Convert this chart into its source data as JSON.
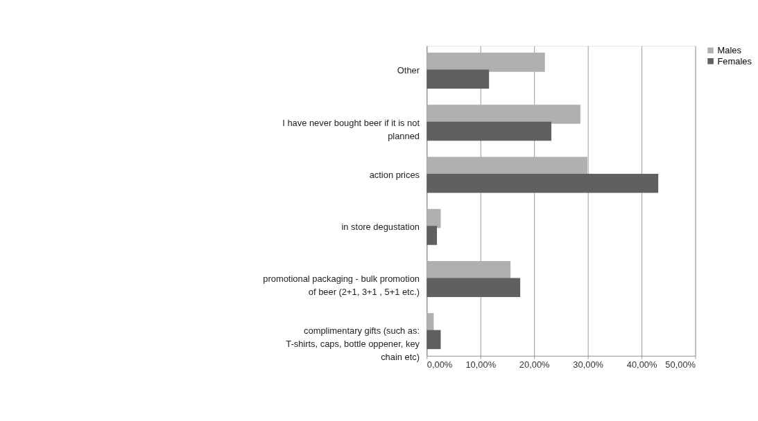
{
  "chart_data": {
    "type": "bar",
    "orientation": "horizontal",
    "categories": [
      "Other",
      "I have never bought beer if it is not planned",
      "action prices",
      "in store degustation",
      "promotional packaging - bulk promotion of beer (2+1, 3+1 , 5+1 etc.)",
      "complimentary gifts (such as: T-shirts, caps, bottle oppener, key chain etc)"
    ],
    "series": [
      {
        "name": "Males",
        "color": "#b0b0b0",
        "values": [
          22.0,
          28.6,
          29.9,
          2.6,
          15.6,
          1.3
        ]
      },
      {
        "name": "Females",
        "color": "#606060",
        "values": [
          11.6,
          23.2,
          43.1,
          1.9,
          17.4,
          2.6
        ]
      }
    ],
    "xlim": [
      0,
      50
    ],
    "xticks": [
      {
        "value": 0,
        "label": "0,00%"
      },
      {
        "value": 10,
        "label": "10,00%"
      },
      {
        "value": 20,
        "label": "20,00%"
      },
      {
        "value": 30,
        "label": "30,00%"
      },
      {
        "value": 40,
        "label": "40,00%"
      },
      {
        "value": 50,
        "label": "50,00%"
      }
    ],
    "grid": "x",
    "legend": "right"
  }
}
